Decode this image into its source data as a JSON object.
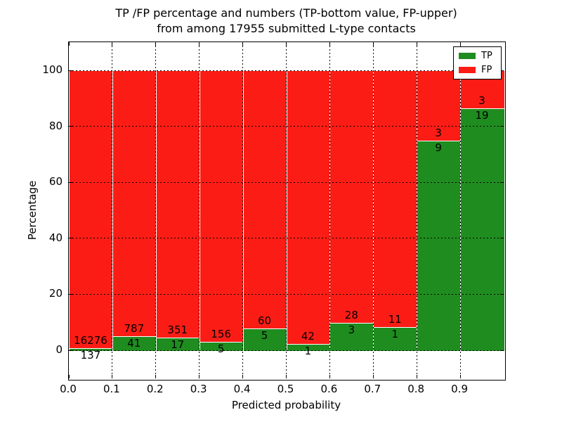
{
  "title": {
    "line1": "TP /FP percentage and numbers (TP-bottom value, FP-upper)",
    "line2": "from among 17955 submitted L-type contacts"
  },
  "axes": {
    "xlabel": "Predicted probability",
    "ylabel": "Percentage",
    "xtick_labels": [
      "0.0",
      "0.1",
      "0.2",
      "0.3",
      "0.4",
      "0.5",
      "0.6",
      "0.7",
      "0.8",
      "0.9"
    ],
    "xtick_values": [
      0,
      0.1,
      0.2,
      0.3,
      0.4,
      0.5,
      0.6,
      0.7,
      0.8,
      0.9
    ],
    "ytick_labels": [
      "0",
      "20",
      "40",
      "60",
      "80",
      "100"
    ],
    "ytick_values": [
      0,
      20,
      40,
      60,
      80,
      100
    ]
  },
  "legend": {
    "items": [
      {
        "label": "TP",
        "color": "#1f8c1f"
      },
      {
        "label": "FP",
        "color": "#fb1d15"
      }
    ]
  },
  "chart_data": {
    "type": "bar",
    "stacked": true,
    "title": "TP /FP percentage and numbers (TP-bottom value, FP-upper) from among 17955 submitted L-type contacts",
    "xlabel": "Predicted probability",
    "ylabel": "Percentage",
    "xlim": [
      0,
      1.0
    ],
    "ylim": [
      -10.5,
      110.5
    ],
    "grid": true,
    "grid_style": "dotted-black-over-bars",
    "bar_edge_color": "#ffffff",
    "legend_position": "upper right",
    "total_contacts": 17955,
    "bin_edges": [
      0.0,
      0.1,
      0.2,
      0.3,
      0.4,
      0.5,
      0.6,
      0.7,
      0.8,
      0.9,
      1.0
    ],
    "categories": [
      "0.0-0.1",
      "0.1-0.2",
      "0.2-0.3",
      "0.3-0.4",
      "0.4-0.5",
      "0.5-0.6",
      "0.6-0.7",
      "0.7-0.8",
      "0.8-0.9",
      "0.9-1.0"
    ],
    "series": [
      {
        "name": "TP",
        "color": "#1f8c1f",
        "counts": [
          137,
          41,
          17,
          5,
          5,
          1,
          3,
          1,
          9,
          19
        ],
        "percent": [
          0.83,
          4.95,
          4.62,
          3.11,
          7.69,
          2.33,
          9.68,
          8.33,
          75.0,
          86.36
        ]
      },
      {
        "name": "FP",
        "color": "#fb1d15",
        "counts": [
          16276,
          787,
          351,
          156,
          60,
          42,
          28,
          11,
          3,
          3
        ],
        "percent": [
          99.17,
          95.05,
          95.38,
          96.89,
          92.31,
          97.67,
          90.32,
          91.67,
          25.0,
          13.64
        ]
      }
    ]
  }
}
